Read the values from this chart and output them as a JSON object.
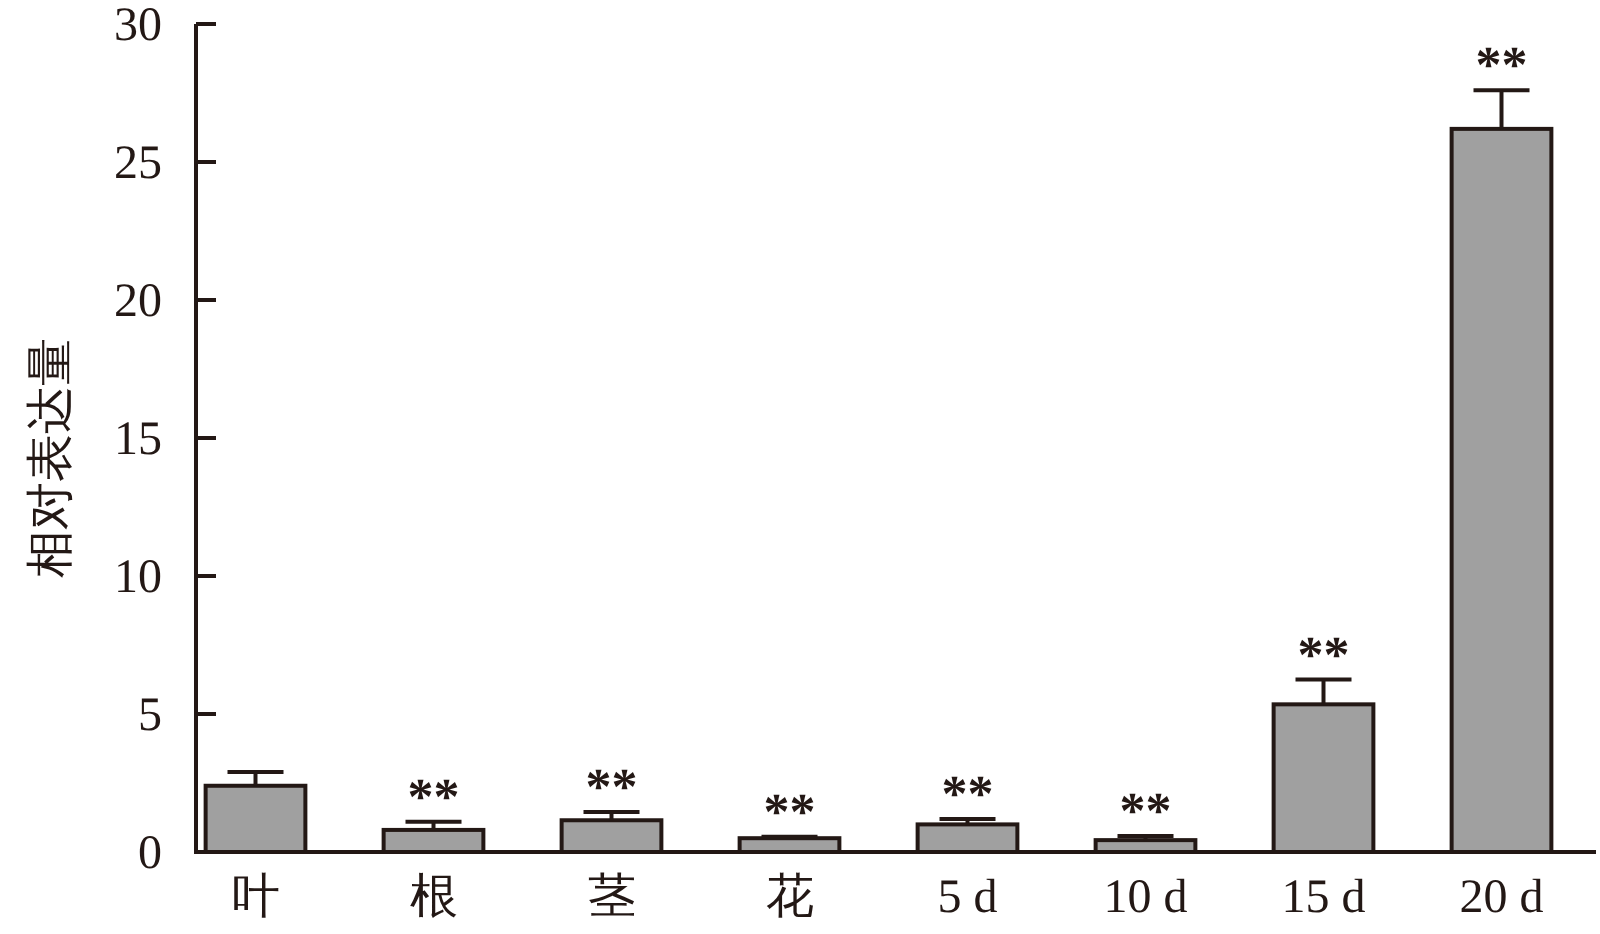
{
  "chart_data": {
    "type": "bar",
    "ylabel": "相对表达量",
    "categories": [
      "叶",
      "根",
      "茎",
      "花",
      "5 d",
      "10 d",
      "15 d",
      "20 d"
    ],
    "values": [
      2.4,
      0.8,
      1.15,
      0.5,
      1.0,
      0.43,
      5.35,
      26.2
    ],
    "errors": [
      0.5,
      0.3,
      0.3,
      0.05,
      0.2,
      0.15,
      0.9,
      1.4
    ],
    "color": "#a0a0a0",
    "ylim": [
      0,
      30
    ],
    "yticks": [
      0,
      5,
      10,
      15,
      20,
      25,
      30
    ],
    "grid": false,
    "annotations": [
      {
        "text": "**",
        "x": "根",
        "y": 1.1
      },
      {
        "text": "**",
        "x": "茎",
        "y": 1.45
      },
      {
        "text": "**",
        "x": "花",
        "y": 0.55
      },
      {
        "text": "**",
        "x": "5 d",
        "y": 1.2
      },
      {
        "text": "**",
        "x": "10 d",
        "y": 0.58
      },
      {
        "text": "**",
        "x": "15 d",
        "y": 6.25
      },
      {
        "text": "**",
        "x": "20 d",
        "y": 27.6
      }
    ]
  }
}
